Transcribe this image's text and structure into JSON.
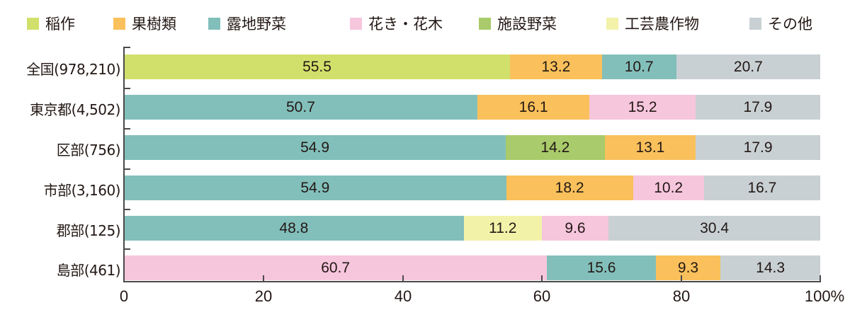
{
  "legend": [
    {
      "label": "稲作",
      "color": "#d1e06b"
    },
    {
      "label": "果樹類",
      "color": "#f9c05b"
    },
    {
      "label": "露地野菜",
      "color": "#82bfbb"
    },
    {
      "label": "花き・花木",
      "color": "#f6c6dc"
    },
    {
      "label": "施設野菜",
      "color": "#a9cb6b"
    },
    {
      "label": "工芸農作物",
      "color": "#f3f2a9"
    },
    {
      "label": "その他",
      "color": "#c8d0d3"
    }
  ],
  "rows": [
    {
      "label": "全国(978,210)",
      "segments": [
        {
          "category": "稲作",
          "value": "55.5",
          "color": "#d1e06b"
        },
        {
          "category": "果樹類",
          "value": "13.2",
          "color": "#f9c05b"
        },
        {
          "category": "露地野菜",
          "value": "10.7",
          "color": "#82bfbb"
        },
        {
          "category": "その他",
          "value": "20.7",
          "color": "#c8d0d3"
        }
      ]
    },
    {
      "label": "東京都(4,502)",
      "segments": [
        {
          "category": "露地野菜",
          "value": "50.7",
          "color": "#82bfbb"
        },
        {
          "category": "果樹類",
          "value": "16.1",
          "color": "#f9c05b"
        },
        {
          "category": "花き・花木",
          "value": "15.2",
          "color": "#f6c6dc"
        },
        {
          "category": "その他",
          "value": "17.9",
          "color": "#c8d0d3"
        }
      ]
    },
    {
      "label": "区部(756)",
      "segments": [
        {
          "category": "露地野菜",
          "value": "54.9",
          "color": "#82bfbb"
        },
        {
          "category": "施設野菜",
          "value": "14.2",
          "color": "#a9cb6b"
        },
        {
          "category": "果樹類",
          "value": "13.1",
          "color": "#f9c05b"
        },
        {
          "category": "その他",
          "value": "17.9",
          "color": "#c8d0d3"
        }
      ]
    },
    {
      "label": "市部(3,160)",
      "segments": [
        {
          "category": "露地野菜",
          "value": "54.9",
          "color": "#82bfbb"
        },
        {
          "category": "果樹類",
          "value": "18.2",
          "color": "#f9c05b"
        },
        {
          "category": "花き・花木",
          "value": "10.2",
          "color": "#f6c6dc"
        },
        {
          "category": "その他",
          "value": "16.7",
          "color": "#c8d0d3"
        }
      ]
    },
    {
      "label": "郡部(125)",
      "segments": [
        {
          "category": "露地野菜",
          "value": "48.8",
          "color": "#82bfbb"
        },
        {
          "category": "工芸農作物",
          "value": "11.2",
          "color": "#f3f2a9"
        },
        {
          "category": "花き・花木",
          "value": "9.6",
          "color": "#f6c6dc"
        },
        {
          "category": "その他",
          "value": "30.4",
          "color": "#c8d0d3"
        }
      ]
    },
    {
      "label": "島部(461)",
      "segments": [
        {
          "category": "花き・花木",
          "value": "60.7",
          "color": "#f6c6dc"
        },
        {
          "category": "露地野菜",
          "value": "15.6",
          "color": "#82bfbb"
        },
        {
          "category": "果樹類",
          "value": "9.3",
          "color": "#f9c05b"
        },
        {
          "category": "その他",
          "value": "14.3",
          "color": "#c8d0d3"
        }
      ]
    }
  ],
  "xaxis": {
    "ticks": [
      "0",
      "20",
      "40",
      "60",
      "80",
      "100%"
    ]
  },
  "chart_data": {
    "type": "bar",
    "orientation": "horizontal",
    "stacked": true,
    "title": "",
    "xlabel": "",
    "ylabel": "",
    "xlim": [
      0,
      100
    ],
    "x_ticks": [
      "0",
      "20",
      "40",
      "60",
      "80",
      "100%"
    ],
    "grid": false,
    "legend_position": "top",
    "legend": [
      "稲作",
      "果樹類",
      "露地野菜",
      "花き・花木",
      "施設野菜",
      "工芸農作物",
      "その他"
    ],
    "categories": [
      "全国(978,210)",
      "東京都(4,502)",
      "区部(756)",
      "市部(3,160)",
      "郡部(125)",
      "島部(461)"
    ],
    "series": [
      {
        "name": "稲作",
        "values": [
          55.5,
          null,
          null,
          null,
          null,
          null
        ]
      },
      {
        "name": "果樹類",
        "values": [
          13.2,
          16.1,
          13.1,
          18.2,
          null,
          9.3
        ]
      },
      {
        "name": "露地野菜",
        "values": [
          10.7,
          50.7,
          54.9,
          54.9,
          48.8,
          15.6
        ]
      },
      {
        "name": "花き・花木",
        "values": [
          null,
          15.2,
          null,
          10.2,
          9.6,
          60.7
        ]
      },
      {
        "name": "施設野菜",
        "values": [
          null,
          null,
          14.2,
          null,
          null,
          null
        ]
      },
      {
        "name": "工芸農作物",
        "values": [
          null,
          null,
          null,
          null,
          11.2,
          null
        ]
      },
      {
        "name": "その他",
        "values": [
          20.7,
          17.9,
          17.9,
          16.7,
          30.4,
          14.3
        ]
      }
    ],
    "stack_order_per_row": [
      [
        "稲作",
        "果樹類",
        "露地野菜",
        "その他"
      ],
      [
        "露地野菜",
        "果樹類",
        "花き・花木",
        "その他"
      ],
      [
        "露地野菜",
        "施設野菜",
        "果樹類",
        "その他"
      ],
      [
        "露地野菜",
        "果樹類",
        "花き・花木",
        "その他"
      ],
      [
        "露地野菜",
        "工芸農作物",
        "花き・花木",
        "その他"
      ],
      [
        "花き・花木",
        "露地野菜",
        "果樹類",
        "その他"
      ]
    ]
  }
}
